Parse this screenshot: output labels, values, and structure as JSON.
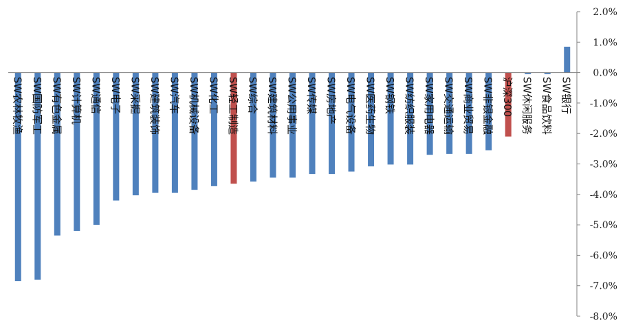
{
  "chart_data": {
    "type": "bar",
    "orientation": "vertical",
    "categories": [
      "SW农林牧渔",
      "SW国防军工",
      "SW有色金属",
      "SW计算机",
      "SW通信",
      "SW电子",
      "SW采掘",
      "SW建筑装饰",
      "SW汽车",
      "SW机械设备",
      "SW化工",
      "SW轻工制造",
      "SW综合",
      "SW建筑材料",
      "SW公用事业",
      "SW传媒",
      "SW房地产",
      "SW电气设备",
      "SW医药生物",
      "SW钢铁",
      "SW纺织服装",
      "SW家用电器",
      "SW交通运输",
      "SW商业贸易",
      "SW非银金融",
      "沪深300",
      "SW休闲服务",
      "SW食品饮料",
      "SW银行"
    ],
    "values": [
      -6.85,
      -6.8,
      -5.35,
      -5.2,
      -5.0,
      -4.2,
      -4.03,
      -3.95,
      -3.95,
      -3.85,
      -3.73,
      -3.65,
      -3.58,
      -3.45,
      -3.45,
      -3.33,
      -3.33,
      -3.25,
      -3.08,
      -3.02,
      -3.02,
      -2.7,
      -2.67,
      -2.67,
      -2.55,
      -2.1,
      -0.05,
      -0.05,
      0.85
    ],
    "bar_colors": [
      "#4f81bd",
      "#4f81bd",
      "#4f81bd",
      "#4f81bd",
      "#4f81bd",
      "#4f81bd",
      "#4f81bd",
      "#4f81bd",
      "#4f81bd",
      "#4f81bd",
      "#4f81bd",
      "#c0504d",
      "#4f81bd",
      "#4f81bd",
      "#4f81bd",
      "#4f81bd",
      "#4f81bd",
      "#4f81bd",
      "#4f81bd",
      "#4f81bd",
      "#4f81bd",
      "#4f81bd",
      "#4f81bd",
      "#4f81bd",
      "#4f81bd",
      "#c0504d",
      "#4f81bd",
      "#4f81bd",
      "#4f81bd"
    ],
    "y_ticks": [
      "2.0%",
      "1.0%",
      "0.0%",
      "-1.0%",
      "-2.0%",
      "-3.0%",
      "-4.0%",
      "-5.0%",
      "-6.0%",
      "-7.0%",
      "-8.0%"
    ],
    "ylim": [
      -8.0,
      2.0
    ],
    "y_unit": "%",
    "y_axis_position": "right",
    "grid": false,
    "legend": "none",
    "title": "",
    "xlabel": "",
    "ylabel": ""
  }
}
